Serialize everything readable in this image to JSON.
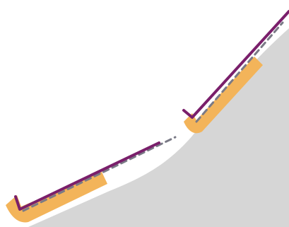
{
  "diagram": {
    "colors": {
      "background": "#ffffff",
      "terrain": "#d6d6d6",
      "pad": "#f3b45a",
      "barrier": "#7a1f6b",
      "guide": "#7a7a86"
    }
  }
}
